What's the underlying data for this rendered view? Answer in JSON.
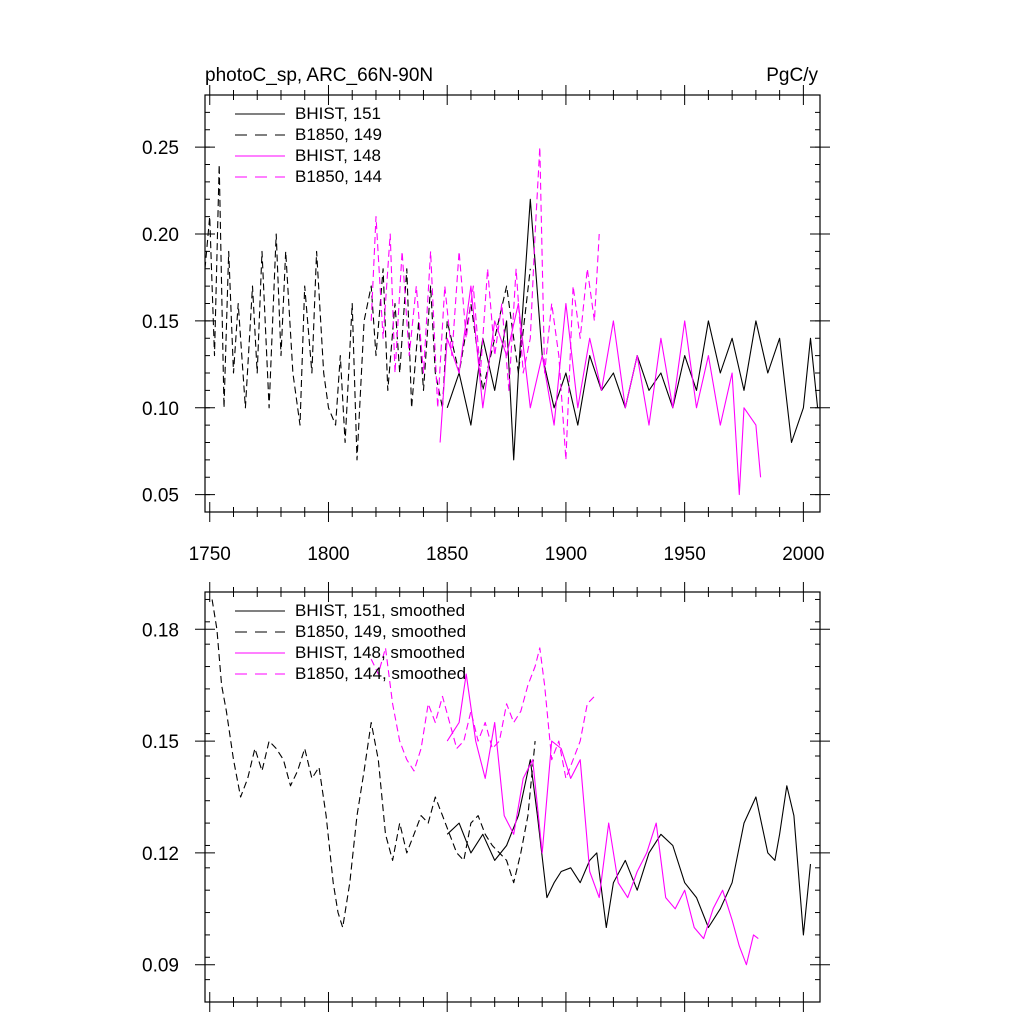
{
  "chart_data": [
    {
      "type": "line",
      "title_left": "photoC_sp, ARC_66N-90N",
      "title_right": "PgC/y",
      "xlim": [
        1748,
        2007
      ],
      "ylim": [
        0.04,
        0.28
      ],
      "xticks": [
        1750,
        1800,
        1850,
        1900,
        1950,
        2000
      ],
      "yticks": [
        0.05,
        0.1,
        0.15,
        0.2,
        0.25
      ],
      "ytick_labels": [
        "0.05",
        "0.10",
        "0.15",
        "0.20",
        "0.25"
      ],
      "xtick_labels": [
        "1750",
        "1800",
        "1850",
        "1900",
        "1950",
        "2000"
      ],
      "legend": [
        {
          "label": "BHIST, 151",
          "color": "#000000",
          "dash": "solid"
        },
        {
          "label": "B1850, 149",
          "color": "#000000",
          "dash": "dashed"
        },
        {
          "label": "BHIST, 148",
          "color": "#ff00ff",
          "dash": "solid"
        },
        {
          "label": "B1850, 144",
          "color": "#ff00ff",
          "dash": "dashed"
        }
      ],
      "series": [
        {
          "name": "BHIST, 151",
          "color": "#000000",
          "dash": "solid",
          "x": [
            1850,
            1855,
            1860,
            1865,
            1870,
            1875,
            1878,
            1880,
            1885,
            1890,
            1895,
            1900,
            1905,
            1910,
            1915,
            1920,
            1925,
            1930,
            1935,
            1940,
            1945,
            1950,
            1955,
            1960,
            1965,
            1970,
            1975,
            1980,
            1985,
            1990,
            1995,
            2000,
            2003,
            2006
          ],
          "y": [
            0.1,
            0.12,
            0.09,
            0.14,
            0.11,
            0.15,
            0.07,
            0.12,
            0.22,
            0.13,
            0.1,
            0.12,
            0.09,
            0.13,
            0.11,
            0.12,
            0.1,
            0.13,
            0.11,
            0.12,
            0.1,
            0.13,
            0.11,
            0.15,
            0.12,
            0.14,
            0.11,
            0.15,
            0.12,
            0.14,
            0.08,
            0.1,
            0.14,
            0.1
          ]
        },
        {
          "name": "B1850, 149",
          "color": "#000000",
          "dash": "dashed",
          "x": [
            1748,
            1750,
            1752,
            1754,
            1756,
            1758,
            1760,
            1762,
            1765,
            1768,
            1770,
            1772,
            1775,
            1778,
            1780,
            1782,
            1785,
            1788,
            1790,
            1793,
            1795,
            1798,
            1800,
            1803,
            1805,
            1807,
            1810,
            1812,
            1815,
            1818,
            1820,
            1823,
            1825,
            1828,
            1830,
            1833,
            1835,
            1838,
            1840,
            1843,
            1845,
            1848,
            1850,
            1855,
            1860,
            1865,
            1870,
            1875,
            1880,
            1885
          ],
          "y": [
            0.18,
            0.21,
            0.13,
            0.24,
            0.1,
            0.19,
            0.12,
            0.16,
            0.1,
            0.17,
            0.12,
            0.19,
            0.1,
            0.2,
            0.13,
            0.19,
            0.12,
            0.09,
            0.17,
            0.12,
            0.19,
            0.12,
            0.1,
            0.09,
            0.13,
            0.08,
            0.16,
            0.07,
            0.15,
            0.17,
            0.13,
            0.18,
            0.11,
            0.16,
            0.12,
            0.18,
            0.1,
            0.15,
            0.11,
            0.17,
            0.12,
            0.1,
            0.15,
            0.12,
            0.16,
            0.11,
            0.14,
            0.17,
            0.12,
            0.18
          ]
        },
        {
          "name": "BHIST, 148",
          "color": "#ff00ff",
          "dash": "solid",
          "x": [
            1847,
            1850,
            1855,
            1860,
            1865,
            1870,
            1875,
            1880,
            1885,
            1890,
            1895,
            1900,
            1905,
            1910,
            1915,
            1920,
            1925,
            1930,
            1935,
            1940,
            1945,
            1950,
            1955,
            1960,
            1965,
            1970,
            1973,
            1975,
            1980,
            1982
          ],
          "y": [
            0.08,
            0.14,
            0.12,
            0.17,
            0.1,
            0.15,
            0.13,
            0.16,
            0.1,
            0.13,
            0.09,
            0.16,
            0.1,
            0.14,
            0.11,
            0.15,
            0.1,
            0.13,
            0.09,
            0.14,
            0.1,
            0.15,
            0.1,
            0.13,
            0.09,
            0.12,
            0.05,
            0.1,
            0.09,
            0.06
          ]
        },
        {
          "name": "B1850, 144",
          "color": "#ff00ff",
          "dash": "dashed",
          "x": [
            1818,
            1820,
            1823,
            1826,
            1828,
            1831,
            1834,
            1837,
            1840,
            1843,
            1846,
            1849,
            1852,
            1855,
            1858,
            1861,
            1864,
            1867,
            1870,
            1873,
            1876,
            1879,
            1882,
            1885,
            1887,
            1889,
            1891,
            1894,
            1897,
            1900,
            1903,
            1906,
            1909,
            1912,
            1914
          ],
          "y": [
            0.15,
            0.21,
            0.14,
            0.2,
            0.12,
            0.19,
            0.13,
            0.17,
            0.12,
            0.19,
            0.1,
            0.17,
            0.13,
            0.19,
            0.14,
            0.17,
            0.12,
            0.18,
            0.13,
            0.16,
            0.11,
            0.18,
            0.12,
            0.14,
            0.2,
            0.25,
            0.12,
            0.16,
            0.13,
            0.07,
            0.17,
            0.14,
            0.18,
            0.15,
            0.2
          ]
        }
      ]
    },
    {
      "type": "line",
      "xlim": [
        1748,
        2007
      ],
      "ylim": [
        0.08,
        0.19
      ],
      "xticks": [
        1750,
        1800,
        1850,
        1900,
        1950,
        2000
      ],
      "yticks": [
        0.09,
        0.12,
        0.15,
        0.18
      ],
      "ytick_labels": [
        "0.09",
        "0.12",
        "0.15",
        "0.18"
      ],
      "legend": [
        {
          "label": "BHIST, 151, smoothed",
          "color": "#000000",
          "dash": "solid"
        },
        {
          "label": "B1850, 149, smoothed",
          "color": "#000000",
          "dash": "dashed"
        },
        {
          "label": "BHIST, 148, smoothed",
          "color": "#ff00ff",
          "dash": "solid"
        },
        {
          "label": "B1850, 144, smoothed",
          "color": "#ff00ff",
          "dash": "dashed"
        }
      ],
      "series": [
        {
          "name": "BHIST, 151, smoothed",
          "color": "#000000",
          "dash": "solid",
          "x": [
            1850,
            1855,
            1860,
            1865,
            1870,
            1875,
            1880,
            1885,
            1888,
            1892,
            1895,
            1898,
            1902,
            1906,
            1910,
            1913,
            1917,
            1920,
            1925,
            1930,
            1935,
            1940,
            1945,
            1950,
            1955,
            1960,
            1965,
            1970,
            1975,
            1980,
            1985,
            1988,
            1990,
            1993,
            1996,
            2000,
            2003
          ],
          "y": [
            0.125,
            0.128,
            0.12,
            0.125,
            0.118,
            0.122,
            0.13,
            0.145,
            0.13,
            0.108,
            0.112,
            0.115,
            0.116,
            0.112,
            0.118,
            0.12,
            0.1,
            0.112,
            0.118,
            0.11,
            0.12,
            0.125,
            0.122,
            0.112,
            0.108,
            0.1,
            0.105,
            0.112,
            0.128,
            0.135,
            0.12,
            0.118,
            0.125,
            0.138,
            0.13,
            0.098,
            0.117
          ]
        },
        {
          "name": "B1850, 149, smoothed",
          "color": "#000000",
          "dash": "dashed",
          "x": [
            1751,
            1753,
            1755,
            1757,
            1760,
            1763,
            1766,
            1769,
            1772,
            1775,
            1778,
            1781,
            1784,
            1787,
            1790,
            1793,
            1796,
            1799,
            1802,
            1804,
            1806,
            1809,
            1812,
            1815,
            1818,
            1821,
            1824,
            1827,
            1830,
            1833,
            1836,
            1839,
            1842,
            1845,
            1848,
            1851,
            1854,
            1857,
            1860,
            1863,
            1866,
            1869,
            1872,
            1875,
            1878,
            1881,
            1884,
            1887
          ],
          "y": [
            0.188,
            0.18,
            0.165,
            0.158,
            0.145,
            0.135,
            0.14,
            0.148,
            0.142,
            0.15,
            0.148,
            0.145,
            0.138,
            0.142,
            0.148,
            0.14,
            0.143,
            0.13,
            0.112,
            0.104,
            0.1,
            0.112,
            0.13,
            0.142,
            0.155,
            0.145,
            0.125,
            0.118,
            0.128,
            0.12,
            0.125,
            0.13,
            0.128,
            0.135,
            0.13,
            0.125,
            0.12,
            0.118,
            0.128,
            0.13,
            0.125,
            0.122,
            0.12,
            0.118,
            0.112,
            0.12,
            0.13,
            0.15
          ]
        },
        {
          "name": "BHIST, 148, smoothed",
          "color": "#ff00ff",
          "dash": "solid",
          "x": [
            1850,
            1855,
            1858,
            1862,
            1866,
            1870,
            1874,
            1878,
            1882,
            1886,
            1890,
            1894,
            1898,
            1902,
            1906,
            1910,
            1914,
            1918,
            1922,
            1926,
            1930,
            1934,
            1938,
            1942,
            1946,
            1950,
            1954,
            1958,
            1962,
            1966,
            1970,
            1973,
            1976,
            1979,
            1981
          ],
          "y": [
            0.15,
            0.155,
            0.168,
            0.15,
            0.14,
            0.155,
            0.13,
            0.125,
            0.14,
            0.145,
            0.12,
            0.15,
            0.148,
            0.14,
            0.145,
            0.115,
            0.108,
            0.128,
            0.112,
            0.108,
            0.115,
            0.12,
            0.128,
            0.108,
            0.105,
            0.11,
            0.1,
            0.097,
            0.105,
            0.11,
            0.102,
            0.095,
            0.09,
            0.098,
            0.097
          ]
        },
        {
          "name": "B1850, 144, smoothed",
          "color": "#ff00ff",
          "dash": "dashed",
          "x": [
            1818,
            1821,
            1824,
            1827,
            1830,
            1833,
            1836,
            1839,
            1842,
            1845,
            1848,
            1851,
            1854,
            1857,
            1860,
            1863,
            1866,
            1869,
            1872,
            1875,
            1878,
            1881,
            1884,
            1887,
            1889,
            1891,
            1894,
            1897,
            1900,
            1903,
            1906,
            1909,
            1912
          ],
          "y": [
            0.172,
            0.168,
            0.175,
            0.16,
            0.15,
            0.145,
            0.142,
            0.148,
            0.16,
            0.155,
            0.162,
            0.155,
            0.148,
            0.15,
            0.158,
            0.15,
            0.155,
            0.148,
            0.15,
            0.16,
            0.155,
            0.158,
            0.165,
            0.17,
            0.175,
            0.165,
            0.145,
            0.15,
            0.14,
            0.145,
            0.15,
            0.16,
            0.162
          ]
        }
      ]
    }
  ]
}
